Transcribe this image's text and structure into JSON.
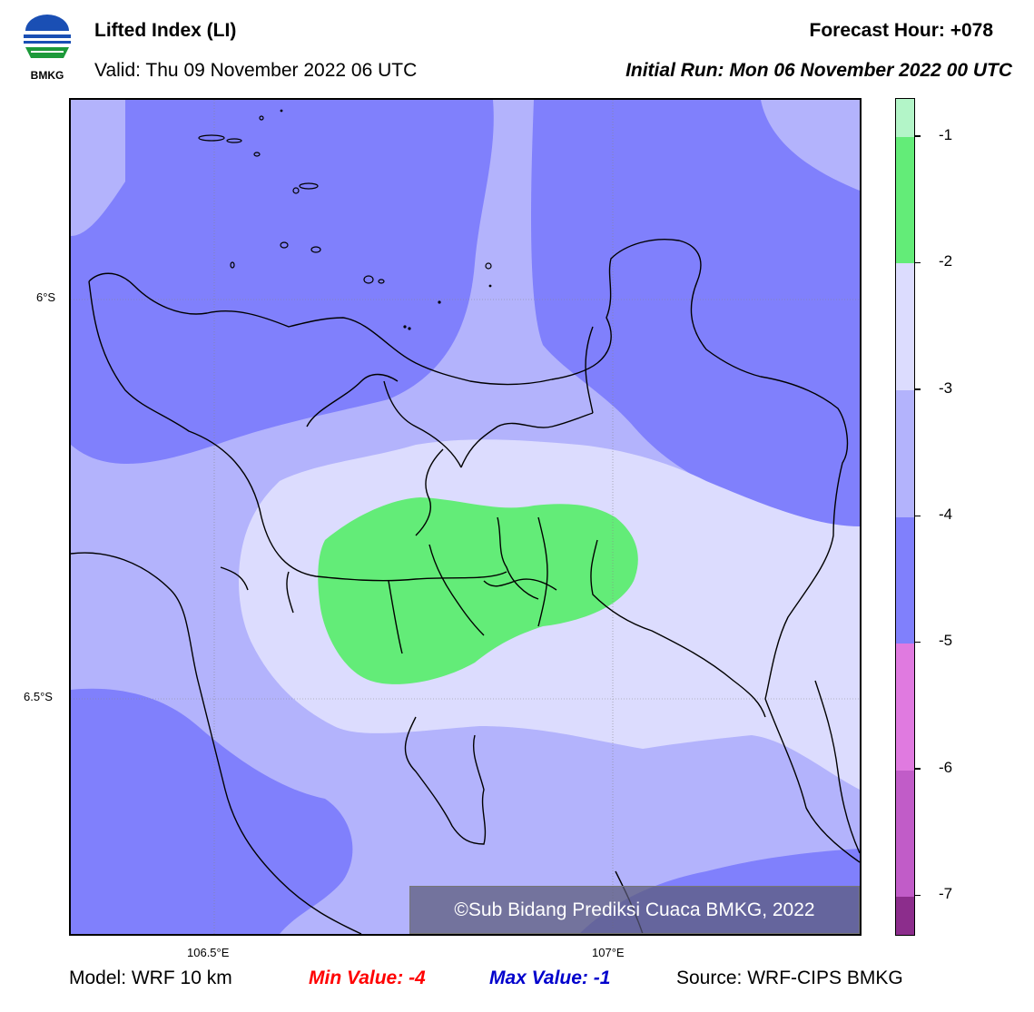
{
  "header": {
    "title": "Lifted Index (LI)",
    "valid": "Valid: Thu 09 November 2022 06 UTC",
    "forecast_hour": "Forecast Hour: +078",
    "initial_run": "Initial Run: Mon 06 November 2022 00 UTC",
    "logo_text": "BMKG"
  },
  "map": {
    "lat_labels": [
      "6°S",
      "6.5°S"
    ],
    "lon_labels": [
      "106.5°E",
      "107°E"
    ],
    "copyright": "©Sub Bidang Prediksi Cuaca BMKG, 2022"
  },
  "colorbar": {
    "ticks": [
      "-1",
      "-2",
      "-3",
      "-4",
      "-5",
      "-6",
      "-7"
    ],
    "colors": {
      "gt_-1": "#b3f5c8",
      "-2_-1": "#63ec78",
      "-3_-2": "#dcdcfe",
      "-4_-3": "#b3b3fc",
      "-5_-4": "#8080fc",
      "-6_-5": "#e07ae0",
      "-7_-6": "#c15cc8",
      "lt_-7": "#8c2d8c"
    }
  },
  "footer": {
    "model": "Model: WRF 10 km",
    "min_value": "Min Value: -4",
    "max_value": "Max Value: -1",
    "source": "Source: WRF-CIPS BMKG"
  }
}
